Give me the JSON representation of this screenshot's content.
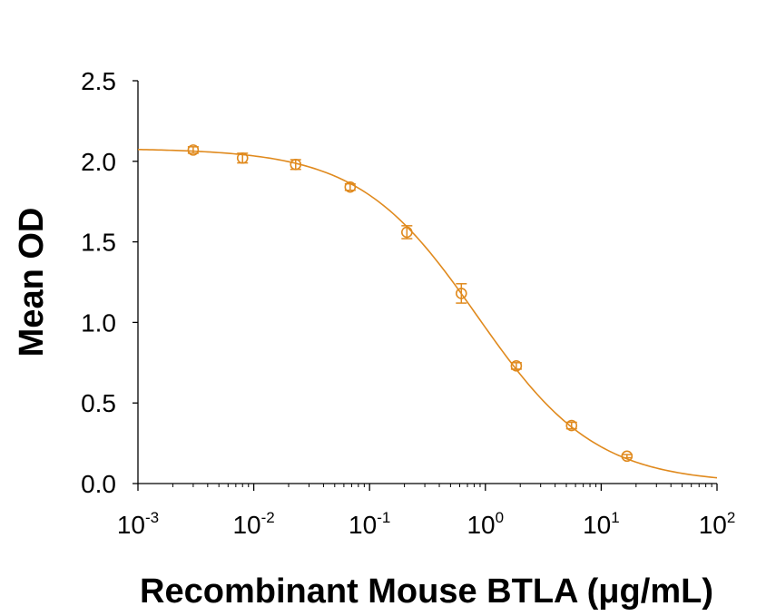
{
  "chart_data": {
    "type": "scatter",
    "title": "",
    "xlabel": "Recombinant Mouse BTLA (μg/mL)",
    "ylabel": "Mean OD",
    "x_scale": "log",
    "xlim": [
      0.001,
      100
    ],
    "ylim": [
      0,
      2.5
    ],
    "grid": false,
    "legend": "none",
    "color": "#E08A1E",
    "x_ticks": [
      {
        "base": "10",
        "exp": "-3"
      },
      {
        "base": "10",
        "exp": "-2"
      },
      {
        "base": "10",
        "exp": "-1"
      },
      {
        "base": "10",
        "exp": "0"
      },
      {
        "base": "10",
        "exp": "1"
      },
      {
        "base": "10",
        "exp": "2"
      }
    ],
    "y_ticks": [
      "0.0",
      "0.5",
      "1.0",
      "1.5",
      "2.0",
      "2.5"
    ],
    "series": [
      {
        "marker": "open-circle",
        "points": [
          {
            "x": 0.003,
            "y": 2.07,
            "err": 0.02
          },
          {
            "x": 0.008,
            "y": 2.02,
            "err": 0.03
          },
          {
            "x": 0.023,
            "y": 1.98,
            "err": 0.03
          },
          {
            "x": 0.068,
            "y": 1.84,
            "err": 0.02
          },
          {
            "x": 0.21,
            "y": 1.56,
            "err": 0.04
          },
          {
            "x": 0.62,
            "y": 1.18,
            "err": 0.06
          },
          {
            "x": 1.85,
            "y": 0.73,
            "err": 0.02
          },
          {
            "x": 5.55,
            "y": 0.36,
            "err": 0.02
          },
          {
            "x": 16.7,
            "y": 0.17,
            "err": 0.01
          }
        ]
      }
    ],
    "fit_curve": {
      "model": "4PL",
      "top": 2.08,
      "bottom": 0.0,
      "ic50": 0.85,
      "hill": 0.85,
      "x_range": [
        0.001,
        100
      ]
    }
  }
}
